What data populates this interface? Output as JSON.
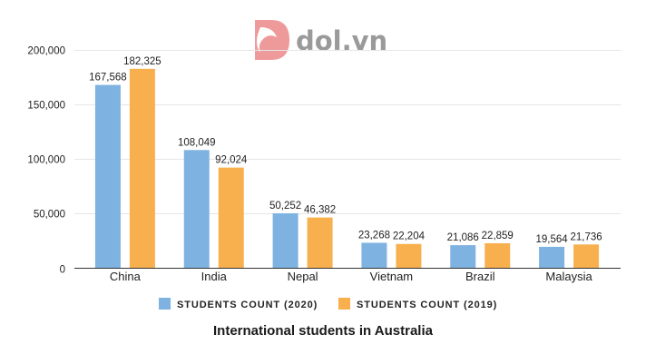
{
  "logo": {
    "text": "dol.vn",
    "mark_color": "#ef9a9a",
    "text_color": "#9a9a9a"
  },
  "chart_data": {
    "type": "bar",
    "title": "International students in Australia",
    "xlabel": "",
    "ylabel": "",
    "categories": [
      "China",
      "India",
      "Nepal",
      "Vietnam",
      "Brazil",
      "Malaysia"
    ],
    "series": [
      {
        "name": "STUDENTS COUNT (2020)",
        "color": "#7eb2e1",
        "values": [
          167568,
          108049,
          50252,
          23268,
          21086,
          19564
        ],
        "labels": [
          "167,568",
          "108,049",
          "50,252",
          "23,268",
          "21,086",
          "19,564"
        ]
      },
      {
        "name": "STUDENTS COUNT (2019)",
        "color": "#f8b04e",
        "values": [
          182325,
          92024,
          46382,
          22204,
          22859,
          21736
        ],
        "labels": [
          "182,325",
          "92,024",
          "46,382",
          "22,204",
          "22,859",
          "21,736"
        ]
      }
    ],
    "ylim": [
      0,
      200000
    ],
    "yticks": [
      0,
      50000,
      100000,
      150000,
      200000
    ],
    "ytick_labels": [
      "0",
      "50,000",
      "100,000",
      "150,000",
      "200,000"
    ],
    "grid": true,
    "legend_position": "bottom"
  }
}
